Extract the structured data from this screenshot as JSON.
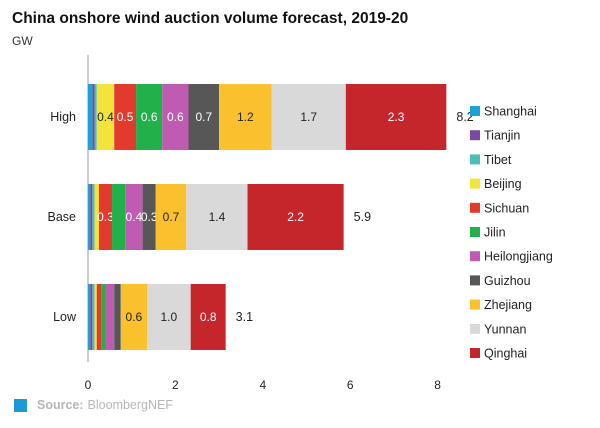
{
  "title": "China onshore wind auction volume forecast, 2019-20",
  "unit": "GW",
  "source": {
    "label": "Source:",
    "value": "BloombergNEF"
  },
  "chart_data": {
    "type": "bar",
    "orientation": "horizontal",
    "stacked": true,
    "categories": [
      "High",
      "Base",
      "Low"
    ],
    "series": [
      {
        "name": "Shanghai",
        "color": "#1aa3d8",
        "values": [
          0.1,
          0.05,
          0.05
        ],
        "labels": [
          "",
          "",
          ""
        ]
      },
      {
        "name": "Tianjin",
        "color": "#7b4aa0",
        "values": [
          0.05,
          0.05,
          0.05
        ],
        "labels": [
          "",
          "",
          ""
        ]
      },
      {
        "name": "Tibet",
        "color": "#4bbfb3",
        "values": [
          0.05,
          0.05,
          0.05
        ],
        "labels": [
          "",
          "",
          ""
        ]
      },
      {
        "name": "Beijing",
        "color": "#f3e43c",
        "values": [
          0.4,
          0.1,
          0.05
        ],
        "labels": [
          "0.4",
          "",
          ""
        ]
      },
      {
        "name": "Sichuan",
        "color": "#e23b2e",
        "values": [
          0.5,
          0.3,
          0.1
        ],
        "labels": [
          "0.5",
          "0.3",
          ""
        ]
      },
      {
        "name": "Jilin",
        "color": "#22b04b",
        "values": [
          0.6,
          0.3,
          0.1
        ],
        "labels": [
          "0.6",
          "",
          ""
        ]
      },
      {
        "name": "Heilongjiang",
        "color": "#c05bb2",
        "values": [
          0.6,
          0.4,
          0.2
        ],
        "labels": [
          "0.6",
          "0.4",
          ""
        ]
      },
      {
        "name": "Guizhou",
        "color": "#575757",
        "values": [
          0.7,
          0.3,
          0.15
        ],
        "labels": [
          "0.7",
          "0.3",
          ""
        ]
      },
      {
        "name": "Zhejiang",
        "color": "#fbc02d",
        "values": [
          1.2,
          0.7,
          0.6
        ],
        "labels": [
          "1.2",
          "0.7",
          "0.6"
        ]
      },
      {
        "name": "Yunnan",
        "color": "#d9d9d9",
        "values": [
          1.7,
          1.4,
          1.0
        ],
        "labels": [
          "1.7",
          "1.4",
          "1.0"
        ]
      },
      {
        "name": "Qinghai",
        "color": "#c4262b",
        "values": [
          2.3,
          2.2,
          0.8
        ],
        "labels": [
          "2.3",
          "2.2",
          "0.8"
        ]
      }
    ],
    "totals": [
      "8.2",
      "5.9",
      "3.1"
    ],
    "xticks": [
      "0",
      "2",
      "4",
      "6",
      "8"
    ],
    "xlim": [
      0,
      8.2
    ],
    "legend_position": "right",
    "grid": false
  }
}
